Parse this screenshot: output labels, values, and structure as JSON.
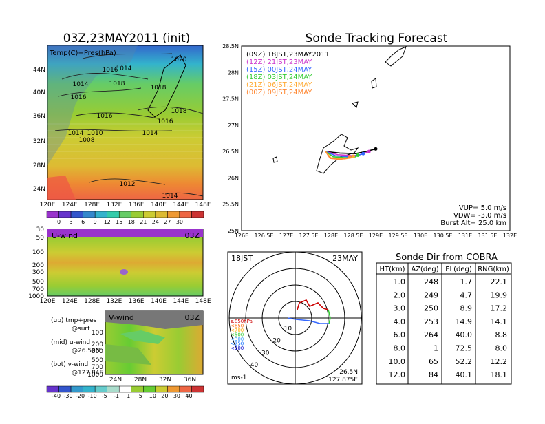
{
  "weather_panel": {
    "title": "03Z,23MAY2011 (init)",
    "label": "Temp(C)+Pres(hPa)",
    "lat_ticks": [
      "44N",
      "40N",
      "36N",
      "32N",
      "28N",
      "24N"
    ],
    "lon_ticks": [
      "120E",
      "124E",
      "128E",
      "132E",
      "136E",
      "140E",
      "144E",
      "148E"
    ],
    "pressure_labels": [
      "1020",
      "1016",
      "1014",
      "1018",
      "1014",
      "1016",
      "1018",
      "1018",
      "1016",
      "1016",
      "1014",
      "1014",
      "1010",
      "1008",
      "1012",
      "1014"
    ],
    "colorbar_ticks": [
      "0",
      "3",
      "6",
      "9",
      "12",
      "15",
      "18",
      "21",
      "24",
      "27",
      "30"
    ]
  },
  "uwind_panel": {
    "label": "U-wind",
    "time": "03Z",
    "levels": [
      "30",
      "50",
      "100",
      "200",
      "300",
      "500",
      "700",
      "1000"
    ],
    "lon_ticks": [
      "120E",
      "124E",
      "128E",
      "132E",
      "136E",
      "140E",
      "144E",
      "148E"
    ]
  },
  "vwind_panel": {
    "label": "V-wind",
    "time": "03Z",
    "levels": [
      "100",
      "200",
      "300",
      "500",
      "700",
      "1000"
    ],
    "lat_ticks": [
      "24N",
      "28N",
      "32N",
      "36N"
    ],
    "colorbar_ticks": [
      "-40",
      "-30",
      "-20",
      "-10",
      "-5",
      "-1",
      "1",
      "5",
      "10",
      "20",
      "30",
      "40"
    ]
  },
  "legend_text": {
    "line1": "(up) tmp+pres",
    "line2": "@surf",
    "line3": "(mid) u-wind",
    "line4": "@26.50N",
    "line5": "(bot) v-wind",
    "line6": "@127.84E"
  },
  "forecast_map": {
    "title": "Sonde Tracking Forecast",
    "lat_ticks": [
      "28.5N",
      "28N",
      "27.5N",
      "27N",
      "26.5N",
      "26N",
      "25.5N",
      "25N"
    ],
    "lon_ticks": [
      "126E",
      "126.5E",
      "127E",
      "127.5E",
      "128E",
      "128.5E",
      "129E",
      "129.5E",
      "130E",
      "130.5E",
      "131E",
      "131.5E",
      "132E"
    ],
    "vup": "VUP= 5.0 m/s",
    "vdw": "VDW= -3.0 m/s",
    "burst": "Burst Alt= 25.0 km",
    "colors": {
      "09Z": "#000000",
      "12Z": "#cc33cc",
      "15Z": "#3366ff",
      "18Z": "#33cc33",
      "21Z": "#ffaa33",
      "00Z": "#ff8833"
    }
  },
  "chart_data": {
    "type": "line",
    "title": "Sonde Tracking Forecast",
    "xlim": [
      126,
      132
    ],
    "ylim": [
      25,
      28.5
    ],
    "series": [
      {
        "name": "(09Z) 18JST,23MAY2011",
        "color": "#000000",
        "x": [
          127.88,
          128.2,
          128.55,
          128.78,
          129.0
        ],
        "y": [
          26.5,
          26.47,
          26.46,
          26.5,
          26.55
        ]
      },
      {
        "name": "(12Z) 21JST,23MAY",
        "color": "#cc33cc",
        "x": [
          127.88,
          128.15,
          128.5,
          128.7,
          128.85
        ],
        "y": [
          26.5,
          26.44,
          26.42,
          26.45,
          26.5
        ]
      },
      {
        "name": "(15Z) 00JST,24MAY",
        "color": "#3366ff",
        "x": [
          127.88,
          128.1,
          128.4,
          128.62,
          128.72
        ],
        "y": [
          26.5,
          26.42,
          26.4,
          26.43,
          26.46
        ]
      },
      {
        "name": "(18Z) 03JST,24MAY",
        "color": "#33cc33",
        "x": [
          127.88,
          128.05,
          128.35,
          128.55,
          128.6
        ],
        "y": [
          26.5,
          26.4,
          26.38,
          26.4,
          26.43
        ]
      },
      {
        "name": "(21Z) 06JST,24MAY",
        "color": "#ffaa33",
        "x": [
          127.88,
          128.0,
          128.3,
          128.45,
          128.5
        ],
        "y": [
          26.5,
          26.38,
          26.36,
          26.38,
          26.41
        ]
      },
      {
        "name": "(00Z) 09JST,24MAY",
        "color": "#ff8833",
        "x": [
          127.88,
          127.98,
          128.2,
          128.35,
          128.42
        ],
        "y": [
          26.5,
          26.37,
          26.35,
          26.37,
          26.4
        ]
      }
    ]
  },
  "polar_panel": {
    "time": "18JST",
    "date": "23MAY",
    "ring_labels": [
      "10",
      "20",
      "30",
      "40"
    ],
    "level_legend": [
      "≥850hPa",
      "<850",
      "<700",
      "<500",
      "<300",
      "<250",
      "<100"
    ],
    "level_colors": [
      "#cc0000",
      "#ff6600",
      "#ffaa00",
      "#33cc33",
      "#3399ff",
      "#0066ff",
      "#0000cc"
    ],
    "unit": "ms-1",
    "lat": "26.5N",
    "lon": "127.875E"
  },
  "table": {
    "title": "Sonde Dir from COBRA",
    "headers": [
      "HT(km)",
      "AZ(deg)",
      "EL(deg)",
      "RNG(km)"
    ],
    "rows": [
      [
        "1.0",
        "248",
        "1.7",
        "22.1"
      ],
      [
        "2.0",
        "249",
        "4.7",
        "19.9"
      ],
      [
        "3.0",
        "250",
        "8.9",
        "17.2"
      ],
      [
        "4.0",
        "253",
        "14.9",
        "14.1"
      ],
      [
        "6.0",
        "264",
        "40.0",
        "8.8"
      ],
      [
        "8.0",
        "1",
        "72.5",
        "8.0"
      ],
      [
        "10.0",
        "65",
        "52.2",
        "12.2"
      ],
      [
        "12.0",
        "84",
        "40.1",
        "18.1"
      ]
    ]
  }
}
